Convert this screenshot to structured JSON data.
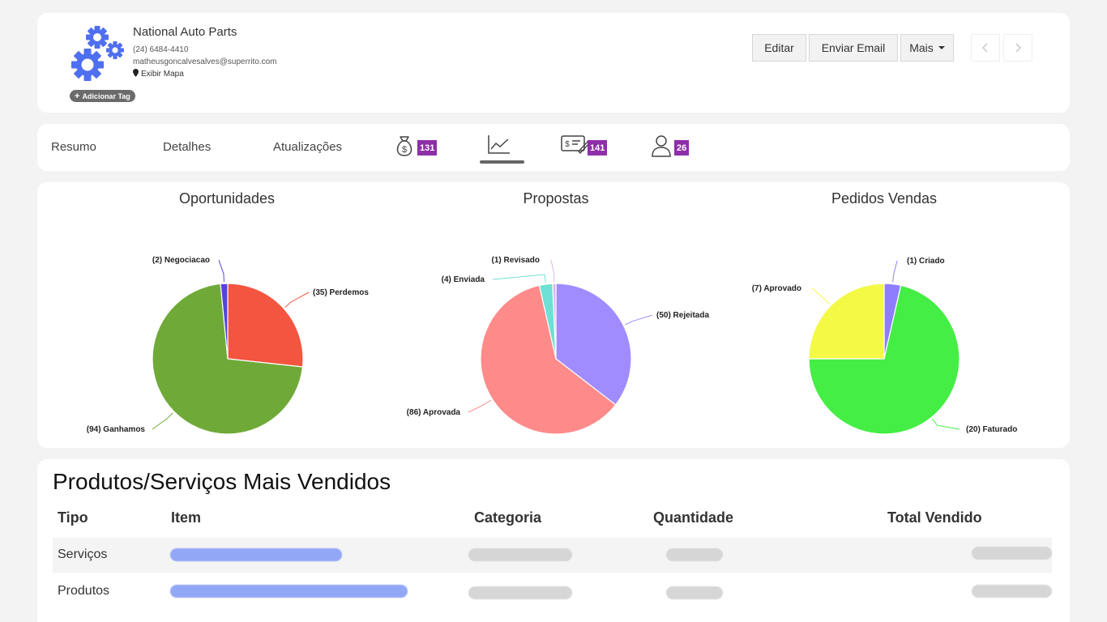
{
  "header": {
    "company_name": "National Auto Parts",
    "phone": "(24) 6484-4410",
    "email": "matheusgoncalvesalves@superrito.com",
    "map_link": "Exibir Mapa",
    "add_tag": "Adicionar Tag",
    "buttons": {
      "edit": "Editar",
      "email": "Enviar Email",
      "more": "Mais"
    },
    "icons": [
      "gears-logo-icon",
      "map-pin-icon",
      "plus-icon",
      "chevron-left-icon",
      "chevron-right-icon"
    ]
  },
  "tabs": {
    "resumo": "Resumo",
    "detalhes": "Detalhes",
    "atualizacoes": "Atualizações",
    "money_bag_count": "131",
    "proposals_count": "141",
    "contacts_count": "26",
    "icons": [
      "money-bag-icon",
      "line-chart-icon",
      "proposal-icon",
      "person-icon"
    ],
    "active_tab": "line-chart"
  },
  "charts": {
    "titles": {
      "oportunidades": "Oportunidades",
      "propostas": "Propostas",
      "pedidos": "Pedidos Vendas"
    }
  },
  "chart_data": [
    {
      "type": "pie",
      "title": "Oportunidades",
      "slices": [
        {
          "label": "(35) Perdemos",
          "value": 35,
          "color": "#f45540"
        },
        {
          "label": "(94) Ganhamos",
          "value": 94,
          "color": "#6faa38"
        },
        {
          "label": "(2) Negociacao",
          "value": 2,
          "color": "#5b3fe0"
        }
      ]
    },
    {
      "type": "pie",
      "title": "Propostas",
      "slices": [
        {
          "label": "(50) Rejeitada",
          "value": 50,
          "color": "#a08cff"
        },
        {
          "label": "(86) Aprovada",
          "value": 86,
          "color": "#ff8a8a"
        },
        {
          "label": "(4) Enviada",
          "value": 4,
          "color": "#6ee0d4"
        },
        {
          "label": "(1) Revisado",
          "value": 1,
          "color": "#d9b8e8"
        }
      ]
    },
    {
      "type": "pie",
      "title": "Pedidos Vendas",
      "slices": [
        {
          "label": "(1) Criado",
          "value": 1,
          "color": "#8f7dff"
        },
        {
          "label": "(20) Faturado",
          "value": 20,
          "color": "#44ee44"
        },
        {
          "label": "(7) Aprovado",
          "value": 7,
          "color": "#f3f945"
        }
      ]
    }
  ],
  "table": {
    "title": "Produtos/Serviços Mais Vendidos",
    "columns": [
      "Tipo",
      "Item",
      "Categoria",
      "Quantidade",
      "Total Vendido"
    ],
    "rows": [
      {
        "tipo": "Serviços"
      },
      {
        "tipo": "Produtos"
      }
    ],
    "colors": {
      "item_redacted": "#93a7f7",
      "other_redacted": "#d6d6d6",
      "row_shade": "#f4f4f4"
    }
  }
}
